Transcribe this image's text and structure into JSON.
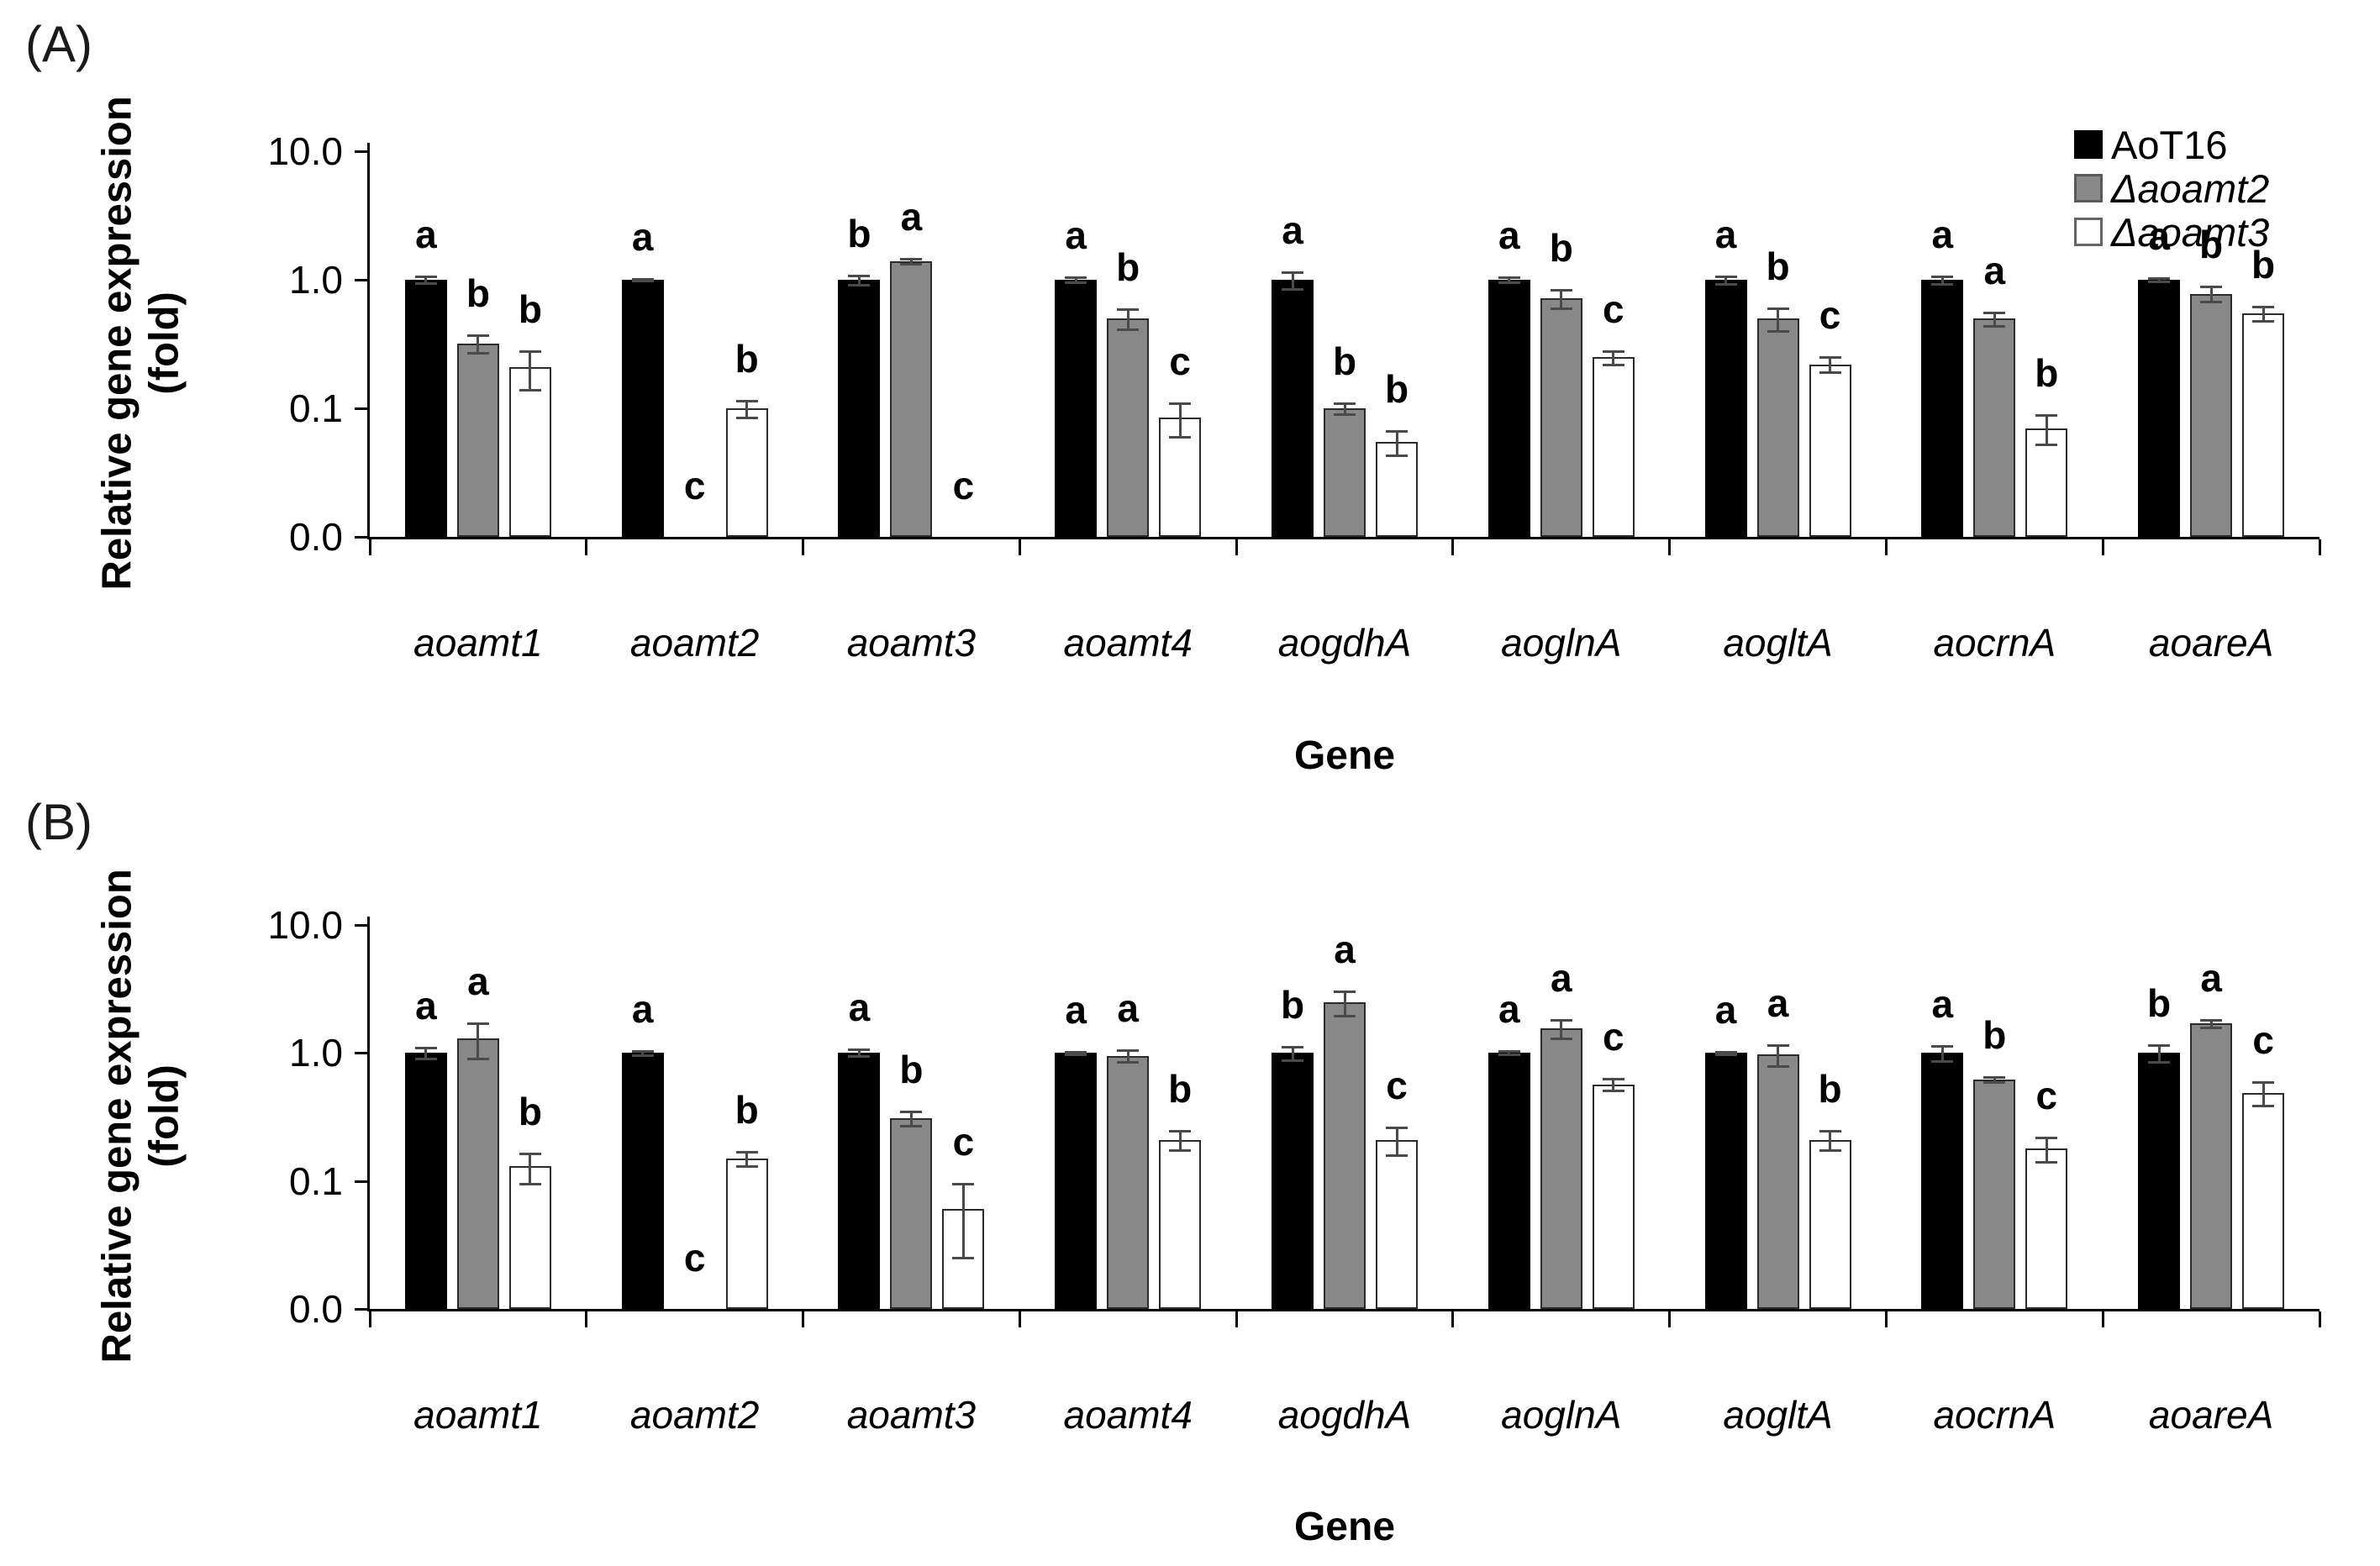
{
  "figure": {
    "panel_a_label": "(A)",
    "panel_b_label": "(B)",
    "y_axis_title_line1": "Relative gene expression",
    "y_axis_title_line2": "(fold)",
    "x_axis_title": "Gene",
    "legend": {
      "items": [
        {
          "label": "AoT16",
          "italic": false,
          "swatch_fill": "#000000",
          "swatch_border": "#000000"
        },
        {
          "label": "Δaoamt2",
          "italic": true,
          "swatch_fill": "#888888",
          "swatch_border": "#5a5a5a"
        },
        {
          "label": "Δaoamt3",
          "italic": true,
          "swatch_fill": "#ffffff",
          "swatch_border": "#666666"
        }
      ]
    },
    "colors": {
      "bar_black": "#000000",
      "bar_gray": "#888888",
      "bar_white": "#ffffff",
      "bar_border": "#2b2b2b",
      "error_bar": "#4a4a4a",
      "axis": "#000000"
    }
  },
  "chart_data": [
    {
      "type": "bar",
      "panel": "A",
      "scale": "log-y",
      "ylim": [
        0.01,
        10
      ],
      "grid": false,
      "legend_position": "top-right",
      "xlabel": "Gene",
      "ylabel": "Relative gene expression (fold)",
      "yticks": [
        {
          "label": "10.0",
          "value": 10
        },
        {
          "label": "1.0",
          "value": 1
        },
        {
          "label": "0.1",
          "value": 0.1
        },
        {
          "label": "0.0",
          "value": 0.01
        }
      ],
      "categories": [
        "aoamt1",
        "aoamt2",
        "aoamt3",
        "aoamt4",
        "aogdhA",
        "aoglnA",
        "aogltA",
        "aocrnA",
        "aoareA"
      ],
      "series": [
        {
          "name": "AoT16",
          "fill": "#000000",
          "values": [
            1.0,
            1.0,
            1.0,
            1.0,
            1.0,
            1.0,
            1.0,
            1.0,
            1.0
          ],
          "errors": [
            0.06,
            0.02,
            0.08,
            0.05,
            0.15,
            0.04,
            0.07,
            0.07,
            0.03
          ],
          "letters": [
            "a",
            "a",
            "b",
            "a",
            "a",
            "a",
            "a",
            "a",
            "a"
          ]
        },
        {
          "name": "Δaoamt2",
          "fill": "#888888",
          "values": [
            0.32,
            null,
            1.4,
            0.5,
            0.1,
            0.72,
            0.5,
            0.5,
            0.78
          ],
          "errors": [
            0.05,
            null,
            0.06,
            0.09,
            0.01,
            0.12,
            0.1,
            0.06,
            0.1
          ],
          "letters": [
            "b",
            "c",
            "a",
            "b",
            "b",
            "b",
            "b",
            "a",
            "b"
          ]
        },
        {
          "name": "Δaoamt3",
          "fill": "#ffffff",
          "values": [
            0.21,
            0.1,
            null,
            0.085,
            0.055,
            0.25,
            0.22,
            0.07,
            0.55
          ],
          "errors": [
            0.07,
            0.015,
            null,
            0.025,
            0.012,
            0.03,
            0.03,
            0.018,
            0.07
          ],
          "letters": [
            "b",
            "b",
            "c",
            "c",
            "b",
            "c",
            "c",
            "b",
            "b"
          ]
        }
      ]
    },
    {
      "type": "bar",
      "panel": "B",
      "scale": "log-y",
      "ylim": [
        0.01,
        10
      ],
      "grid": false,
      "xlabel": "Gene",
      "ylabel": "Relative gene expression (fold)",
      "yticks": [
        {
          "label": "10.0",
          "value": 10
        },
        {
          "label": "1.0",
          "value": 1
        },
        {
          "label": "0.1",
          "value": 0.1
        },
        {
          "label": "0.0",
          "value": 0.01
        }
      ],
      "categories": [
        "aoamt1",
        "aoamt2",
        "aoamt3",
        "aoamt4",
        "aogdhA",
        "aoglnA",
        "aogltA",
        "aocrnA",
        "aoareA"
      ],
      "series": [
        {
          "name": "AoT16",
          "fill": "#000000",
          "values": [
            1.0,
            1.0,
            1.0,
            1.0,
            1.0,
            1.0,
            1.0,
            1.0,
            1.0
          ],
          "errors": [
            0.1,
            0.04,
            0.06,
            0.02,
            0.12,
            0.03,
            0.02,
            0.13,
            0.15
          ],
          "letters": [
            "a",
            "a",
            "a",
            "a",
            "b",
            "a",
            "a",
            "a",
            "b"
          ]
        },
        {
          "name": "Δaoamt2",
          "fill": "#888888",
          "values": [
            1.3,
            null,
            0.31,
            0.95,
            2.5,
            1.55,
            0.97,
            0.62,
            1.7
          ],
          "errors": [
            0.4,
            null,
            0.04,
            0.1,
            0.55,
            0.25,
            0.18,
            0.03,
            0.12
          ],
          "letters": [
            "a",
            "c",
            "b",
            "a",
            "a",
            "a",
            "a",
            "b",
            "a"
          ]
        },
        {
          "name": "Δaoamt3",
          "fill": "#ffffff",
          "values": [
            0.13,
            0.15,
            0.06,
            0.21,
            0.21,
            0.57,
            0.21,
            0.18,
            0.49
          ],
          "errors": [
            0.035,
            0.02,
            0.035,
            0.035,
            0.05,
            0.06,
            0.035,
            0.04,
            0.1
          ],
          "letters": [
            "b",
            "b",
            "c",
            "b",
            "c",
            "c",
            "b",
            "c",
            "c"
          ]
        }
      ]
    }
  ]
}
